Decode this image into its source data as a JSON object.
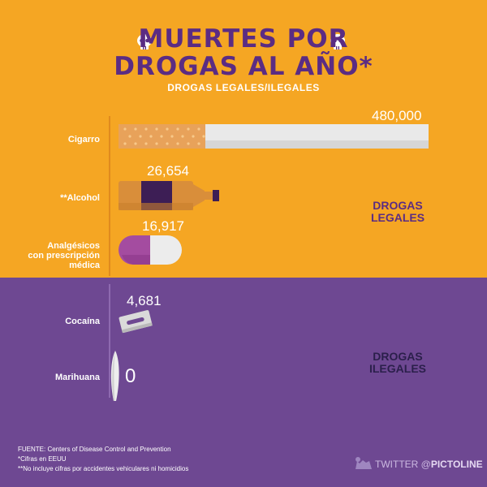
{
  "header": {
    "title_line1": "MUERTES POR",
    "title_line2": "DROGAS AL AÑO*",
    "subtitle": "DROGAS LEGALES/ILEGALES"
  },
  "chart_data": {
    "type": "bar",
    "title": "MUERTES POR DROGAS AL AÑO*",
    "subtitle": "DROGAS LEGALES/ILEGALES",
    "categories": [
      "Cigarro",
      "**Alcohol",
      "Analgésicos con prescripción médica",
      "Cocaína",
      "Marihuana"
    ],
    "values": [
      480000,
      26654,
      16917,
      4681,
      0
    ],
    "value_labels": [
      "480,000",
      "26,654",
      "16,917",
      "4,681",
      "0"
    ],
    "groups": [
      {
        "name": "DROGAS LEGALES",
        "categories": [
          "Cigarro",
          "**Alcohol",
          "Analgésicos con prescripción médica"
        ]
      },
      {
        "name": "DROGAS ILEGALES",
        "categories": [
          "Cocaína",
          "Marihuana"
        ]
      }
    ],
    "orientation": "horizontal",
    "grid": false
  },
  "labels": {
    "cat1": "Cigarro",
    "cat2": "**Alcohol",
    "cat3_l1": "Analgésicos",
    "cat3_l2": "con prescripción",
    "cat3_l3": "médica",
    "cat4": "Cocaína",
    "cat5": "Marihuana"
  },
  "groups": {
    "legal_l1": "DROGAS",
    "legal_l2": "LEGALES",
    "illegal_l1": "DROGAS",
    "illegal_l2": "ILEGALES"
  },
  "footer": {
    "source": "FUENTE: Centers of Disease Control and Prevention",
    "note1": "*Cifras en EEUU",
    "note2": "**No incluye cifras por accidentes vehiculares ni homicidios"
  },
  "brand": {
    "prefix": "TWITTER @",
    "name": "PICTOLINE"
  },
  "colors": {
    "legal_bg": "#F5A623",
    "illegal_bg": "#6E4892",
    "title": "#5B2C83",
    "cigarette_filter": "#E8A25A",
    "cigarette_paper": "#E9E9E9",
    "bottle": "#D98E3A",
    "bottle_label": "#3D1E55",
    "pill_left": "#A44CA0",
    "pill_right": "#ECECEC"
  },
  "icons": [
    "skull-icon",
    "cigarette-icon",
    "bottle-icon",
    "pill-icon",
    "razor-blade-icon",
    "joint-icon",
    "cat-icon"
  ]
}
